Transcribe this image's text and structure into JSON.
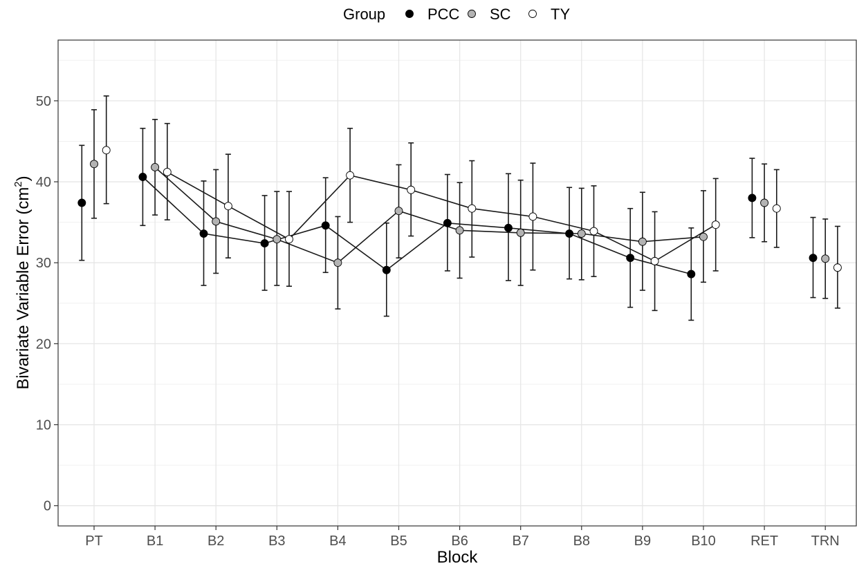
{
  "chart_data": {
    "type": "scatter",
    "xlabel": "Block",
    "ylabel_main": "Bivariate Variable Error (cm",
    "ylabel_sup": "2",
    "ylabel_end": ")",
    "categories": [
      "PT",
      "B1",
      "B2",
      "B3",
      "B4",
      "B5",
      "B6",
      "B7",
      "B8",
      "B9",
      "B10",
      "RET",
      "TRN"
    ],
    "ylim": [
      -2.5,
      57.5
    ],
    "yticks": [
      0,
      10,
      20,
      30,
      40,
      50
    ],
    "grid": true,
    "legend": {
      "title": "Group",
      "placement": "top"
    },
    "connected_categories": [
      "B1",
      "B2",
      "B3",
      "B4",
      "B5",
      "B6",
      "B7",
      "B8",
      "B9",
      "B10"
    ],
    "series": [
      {
        "name": "PCC",
        "fill": "#000000",
        "values": [
          37.4,
          40.6,
          33.6,
          32.4,
          34.6,
          29.1,
          34.9,
          34.3,
          33.6,
          30.6,
          28.6,
          38.0,
          30.6
        ],
        "lower": [
          30.3,
          34.6,
          27.2,
          26.6,
          28.8,
          23.4,
          29.0,
          27.8,
          28.0,
          24.5,
          22.9,
          33.1,
          25.7
        ],
        "upper": [
          44.5,
          46.6,
          40.1,
          38.3,
          40.5,
          34.9,
          40.9,
          41.0,
          39.3,
          36.7,
          34.3,
          42.9,
          35.6
        ]
      },
      {
        "name": "SC",
        "fill": "#b3b3b3",
        "values": [
          42.2,
          41.8,
          35.1,
          32.9,
          30.0,
          36.4,
          34.0,
          33.7,
          33.6,
          32.6,
          33.2,
          37.4,
          30.5
        ],
        "lower": [
          35.5,
          35.9,
          28.7,
          27.2,
          24.3,
          30.6,
          28.1,
          27.2,
          27.9,
          26.6,
          27.6,
          32.6,
          25.6
        ],
        "upper": [
          48.9,
          47.7,
          41.5,
          38.8,
          35.7,
          42.1,
          39.9,
          40.2,
          39.2,
          38.7,
          38.9,
          42.2,
          35.4
        ]
      },
      {
        "name": "TY",
        "fill": "#ffffff",
        "values": [
          43.9,
          41.2,
          37.0,
          32.9,
          40.8,
          39.0,
          36.7,
          35.7,
          33.9,
          30.2,
          34.7,
          36.7,
          29.4
        ],
        "lower": [
          37.3,
          35.3,
          30.6,
          27.1,
          35.0,
          33.3,
          30.7,
          29.1,
          28.3,
          24.1,
          29.0,
          31.9,
          24.4
        ],
        "upper": [
          50.6,
          47.2,
          43.4,
          38.8,
          46.6,
          44.8,
          42.6,
          42.3,
          39.5,
          36.3,
          40.4,
          41.5,
          34.5
        ]
      }
    ]
  }
}
